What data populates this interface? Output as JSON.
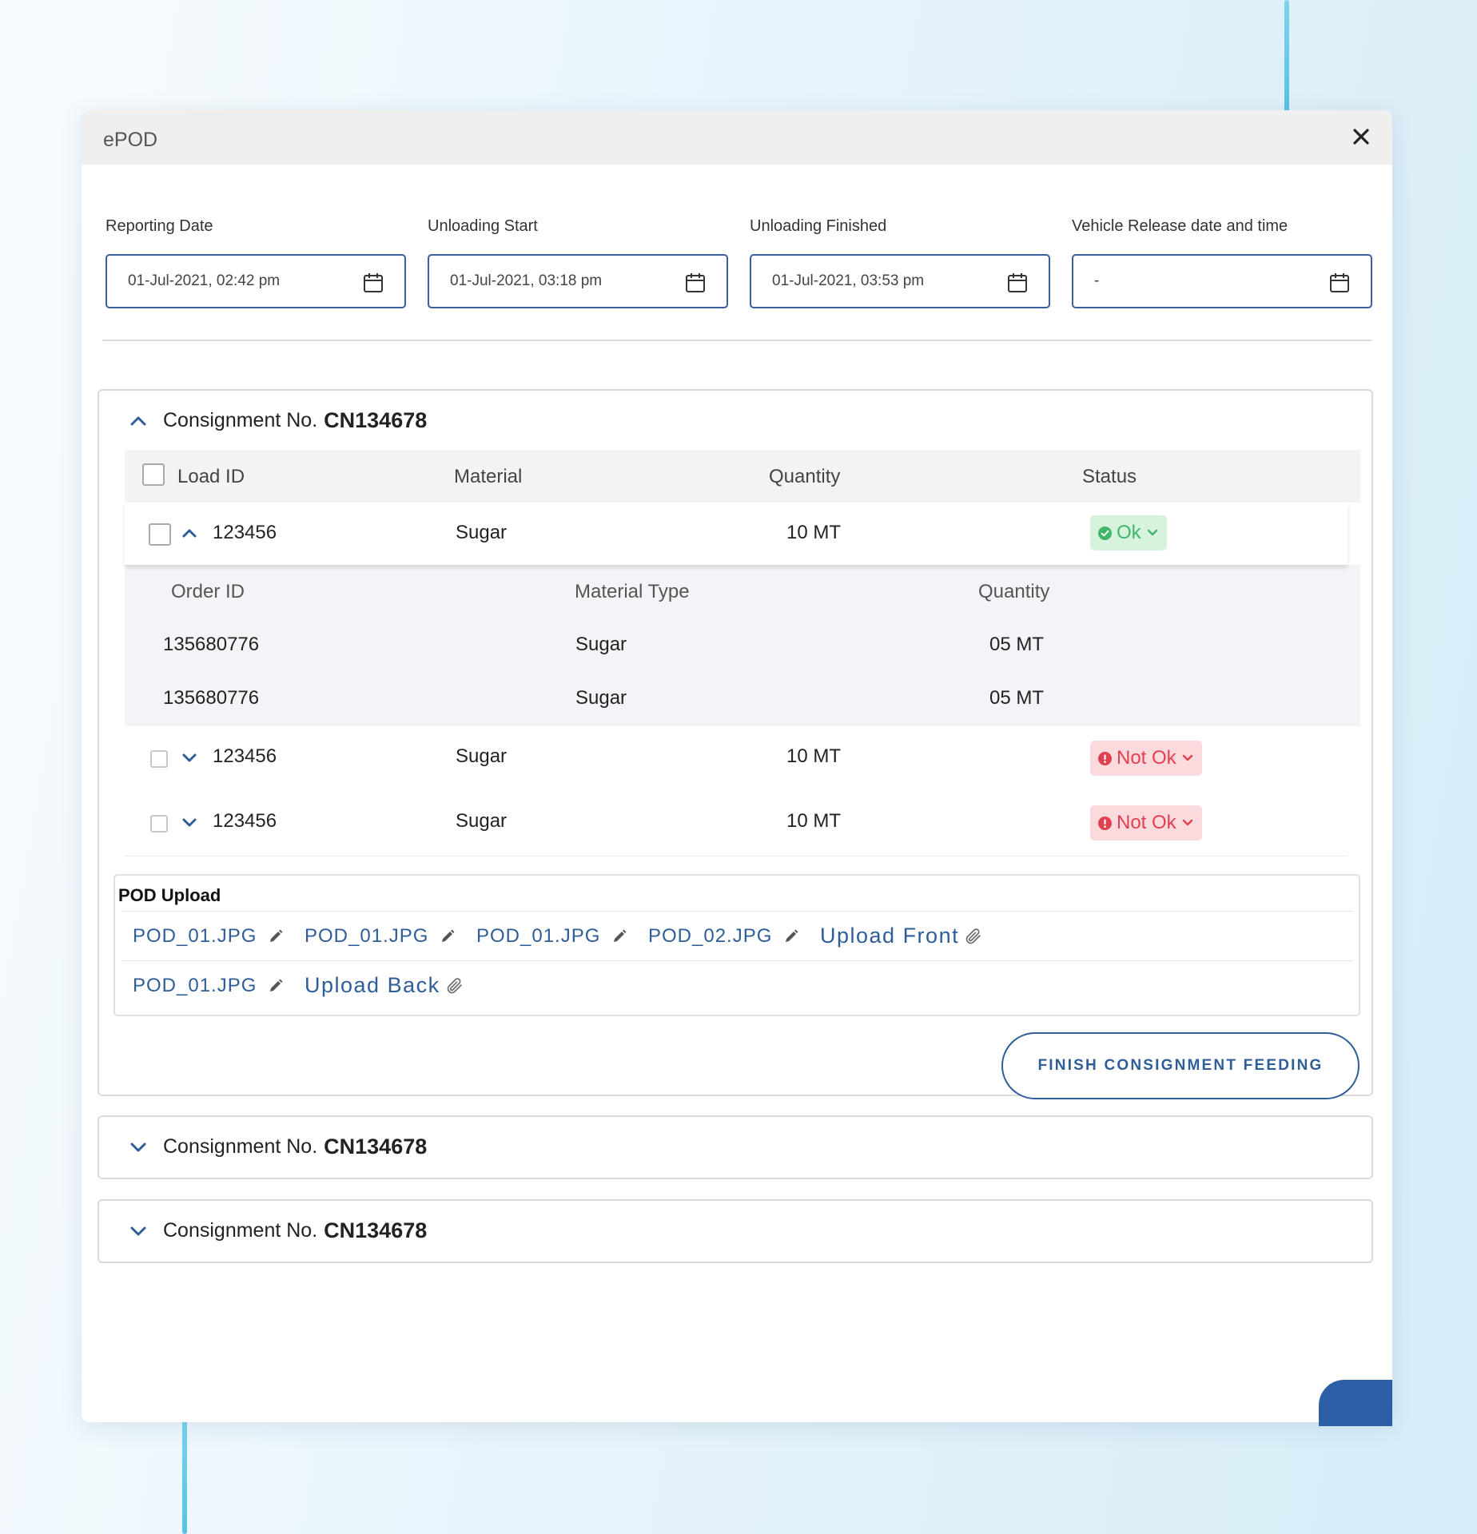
{
  "modal": {
    "title": "ePOD"
  },
  "dates": [
    {
      "label": "Reporting Date",
      "value": "01-Jul-2021, 02:42 pm"
    },
    {
      "label": "Unloading Start",
      "value": "01-Jul-2021, 03:18 pm"
    },
    {
      "label": "Unloading Finished",
      "value": "01-Jul-2021, 03:53 pm"
    },
    {
      "label": "Vehicle Release date and time",
      "value": "-"
    }
  ],
  "consignments": [
    {
      "label": "Consignment No.",
      "number": "CN134678"
    },
    {
      "label": "Consignment No.",
      "number": "CN134678"
    },
    {
      "label": "Consignment No.",
      "number": "CN134678"
    }
  ],
  "table": {
    "headers": {
      "load_id": "Load ID",
      "material": "Material",
      "quantity": "Quantity",
      "status": "Status"
    },
    "rows": [
      {
        "load_id": "123456",
        "material": "Sugar",
        "quantity": "10 MT",
        "status": "Ok"
      },
      {
        "load_id": "123456",
        "material": "Sugar",
        "quantity": "10 MT",
        "status": "Not Ok"
      },
      {
        "load_id": "123456",
        "material": "Sugar",
        "quantity": "10 MT",
        "status": "Not Ok"
      }
    ],
    "sub": {
      "headers": {
        "order_id": "Order ID",
        "material_type": "Material Type",
        "quantity": "Quantity"
      },
      "rows": [
        {
          "order_id": "135680776",
          "material_type": "Sugar",
          "quantity": "05 MT"
        },
        {
          "order_id": "135680776",
          "material_type": "Sugar",
          "quantity": "05 MT"
        }
      ]
    }
  },
  "pod": {
    "title": "POD Upload",
    "front_files": [
      "POD_01.JPG",
      "POD_01.JPG",
      "POD_01.JPG",
      "POD_02.JPG"
    ],
    "upload_front": "Upload Front",
    "back_files": [
      "POD_01.JPG"
    ],
    "upload_back": "Upload Back"
  },
  "finish_button": "FINISH CONSIGNMENT FEEDING",
  "colors": {
    "primary": "#2e5d98",
    "ok_bg": "#d7f2dd",
    "ok_text": "#3fb66a",
    "notok_bg": "#fbdadd",
    "notok_text": "#e0404f",
    "accent_line": "#56c2e4"
  }
}
